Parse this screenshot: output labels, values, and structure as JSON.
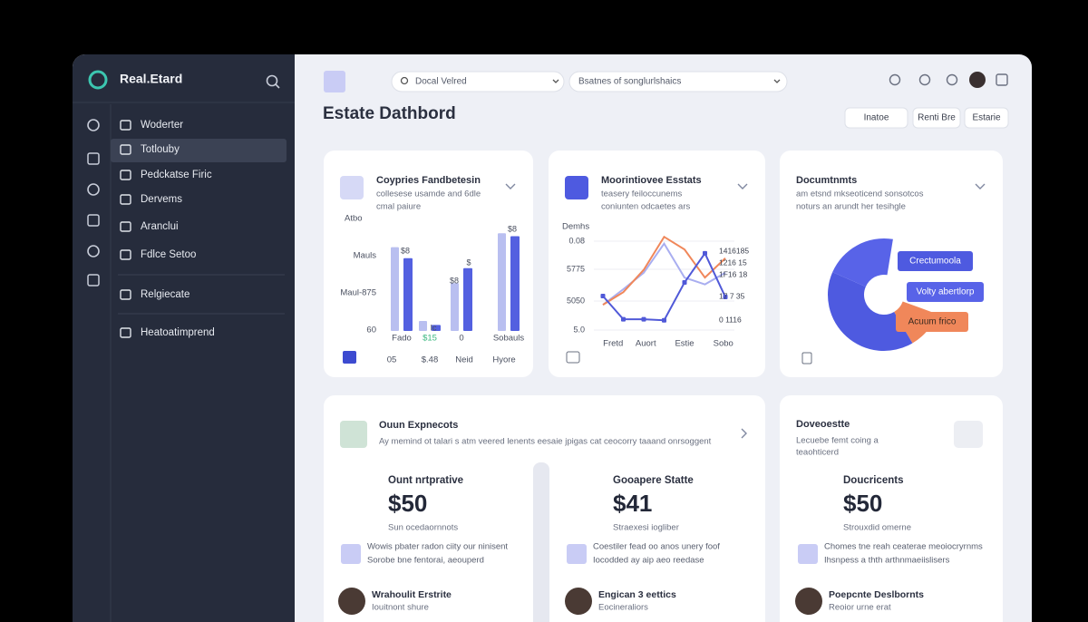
{
  "sidebar": {
    "brand": "Real.Etard",
    "menu": [
      "Woderter",
      "Totlouby",
      "Pedckatse Firic",
      "Dervems",
      "Aranclui",
      "Fdlce Setoo",
      "Relgiecate",
      "Heatoatimprend"
    ]
  },
  "topbar": {
    "search": "Docal Velred",
    "dropdown": "Bsatnes of songlurlshaics"
  },
  "header": {
    "title": "Estate Dathbord",
    "buttons": [
      "Inatoe",
      "Renti Bre",
      "Estarie"
    ]
  },
  "cards": [
    {
      "title": "Coypries Fandbetesin",
      "subtitle": [
        "collesese usamde and 6dle",
        "cmal paiure"
      ],
      "chart_data": {
        "type": "bar",
        "axis_label": "Atbo",
        "axis_texts": [
          "Mauls",
          "Maul-875",
          "60"
        ],
        "categories": [
          "Fado",
          "$15",
          "0",
          "Sobauls"
        ],
        "sublabels": [
          "05",
          "$.48",
          "Neid",
          "Hyore"
        ],
        "notes": [
          "$8",
          "Ic",
          "$8",
          "$",
          "$8"
        ],
        "ylim": [
          0,
          100
        ],
        "series": [
          {
            "color": "#b9bff0",
            "values": [
              84,
              10,
              48,
              98
            ]
          },
          {
            "color": "#5360e0",
            "values": [
              73,
              6,
              63,
              95
            ]
          }
        ]
      }
    },
    {
      "title": "Moorintiovee Esstats",
      "subtitle": [
        "teasery feiloccunems",
        "coniunten odcaetes ars"
      ],
      "chart_data": {
        "type": "line",
        "axis_label": "Demhs",
        "axis_texts": [
          "0.08",
          "5775",
          "5050",
          "5.0"
        ],
        "side_texts": [
          "1416185",
          "1216 15",
          "1F16 18",
          "17 7 35",
          "0 1116"
        ],
        "x": [
          0,
          1,
          2,
          3,
          4,
          5,
          6
        ],
        "xlim": [
          0,
          6
        ],
        "xticks": [
          {
            "value": 0.5,
            "label": "Fretd"
          },
          {
            "value": 2.1,
            "label": "Auort"
          },
          {
            "value": 4,
            "label": "Estie"
          },
          {
            "value": 5.9,
            "label": "Sobo"
          }
        ],
        "ylim": [
          0,
          100
        ],
        "series": [
          {
            "color": "#a9aef0",
            "values": [
              27,
              43,
              60,
              90,
              55,
              48,
              60
            ]
          },
          {
            "color": "#f0875a",
            "values": [
              27,
              40,
              63,
              97,
              84,
              55,
              75
            ]
          },
          {
            "color": "#5059d8",
            "values": [
              36,
              12,
              12,
              11,
              50,
              80,
              35
            ]
          }
        ]
      }
    },
    {
      "title": "Documtnmts",
      "subtitle": [
        "am etsnd mkseoticend sonsotcos",
        "noturs an arundt her tesihgle"
      ],
      "chart_data": {
        "type": "pie",
        "categories": [
          "Acuum frico",
          "Crectumoola",
          "Volty abertlorp"
        ],
        "colors": [
          "#f0875a",
          "#4e5ae0",
          "#5863e8"
        ],
        "values": [
          11,
          40,
          21
        ]
      }
    }
  ],
  "expenses": {
    "title": "Ouun Expnecots",
    "subtitle": "Ay memind ot talari s atm veered lenents eesaie jpigas cat ceocorry taaand onrsoggent",
    "columns": [
      {
        "label": "Ount nrtprative",
        "amount": "$50",
        "caption": "Sun ocedaornnots",
        "note": [
          "Wowis pbater radon ciity our ninisent",
          "Sorobe bne fentorai, aeouperd"
        ],
        "person": "Wrahoulit Erstrite",
        "role": "Iouitnont shure"
      },
      {
        "label": "Gooapere Statte",
        "amount": "$41",
        "caption": "Straexesi iogliber",
        "note": [
          "Coestiler fead oo anos unery foof",
          "Iocodded ay aip aeo reedase"
        ],
        "person": "Engican 3 eettics",
        "role": "Eocineraliors"
      }
    ]
  },
  "documents": {
    "title": "Doveoestte",
    "subtitle": [
      "Lecuebe femt coing a",
      "teaohticerd"
    ],
    "label": "Doucricents",
    "amount": "$50",
    "caption": "Strouxdid omerne",
    "note": [
      "Chomes tne reah ceaterae meoiocryrnms",
      "Ihsnpess a thth arthnmaeiislisers"
    ],
    "person": "Poepcnte Deslbornts",
    "role": "Reoior urne erat"
  }
}
